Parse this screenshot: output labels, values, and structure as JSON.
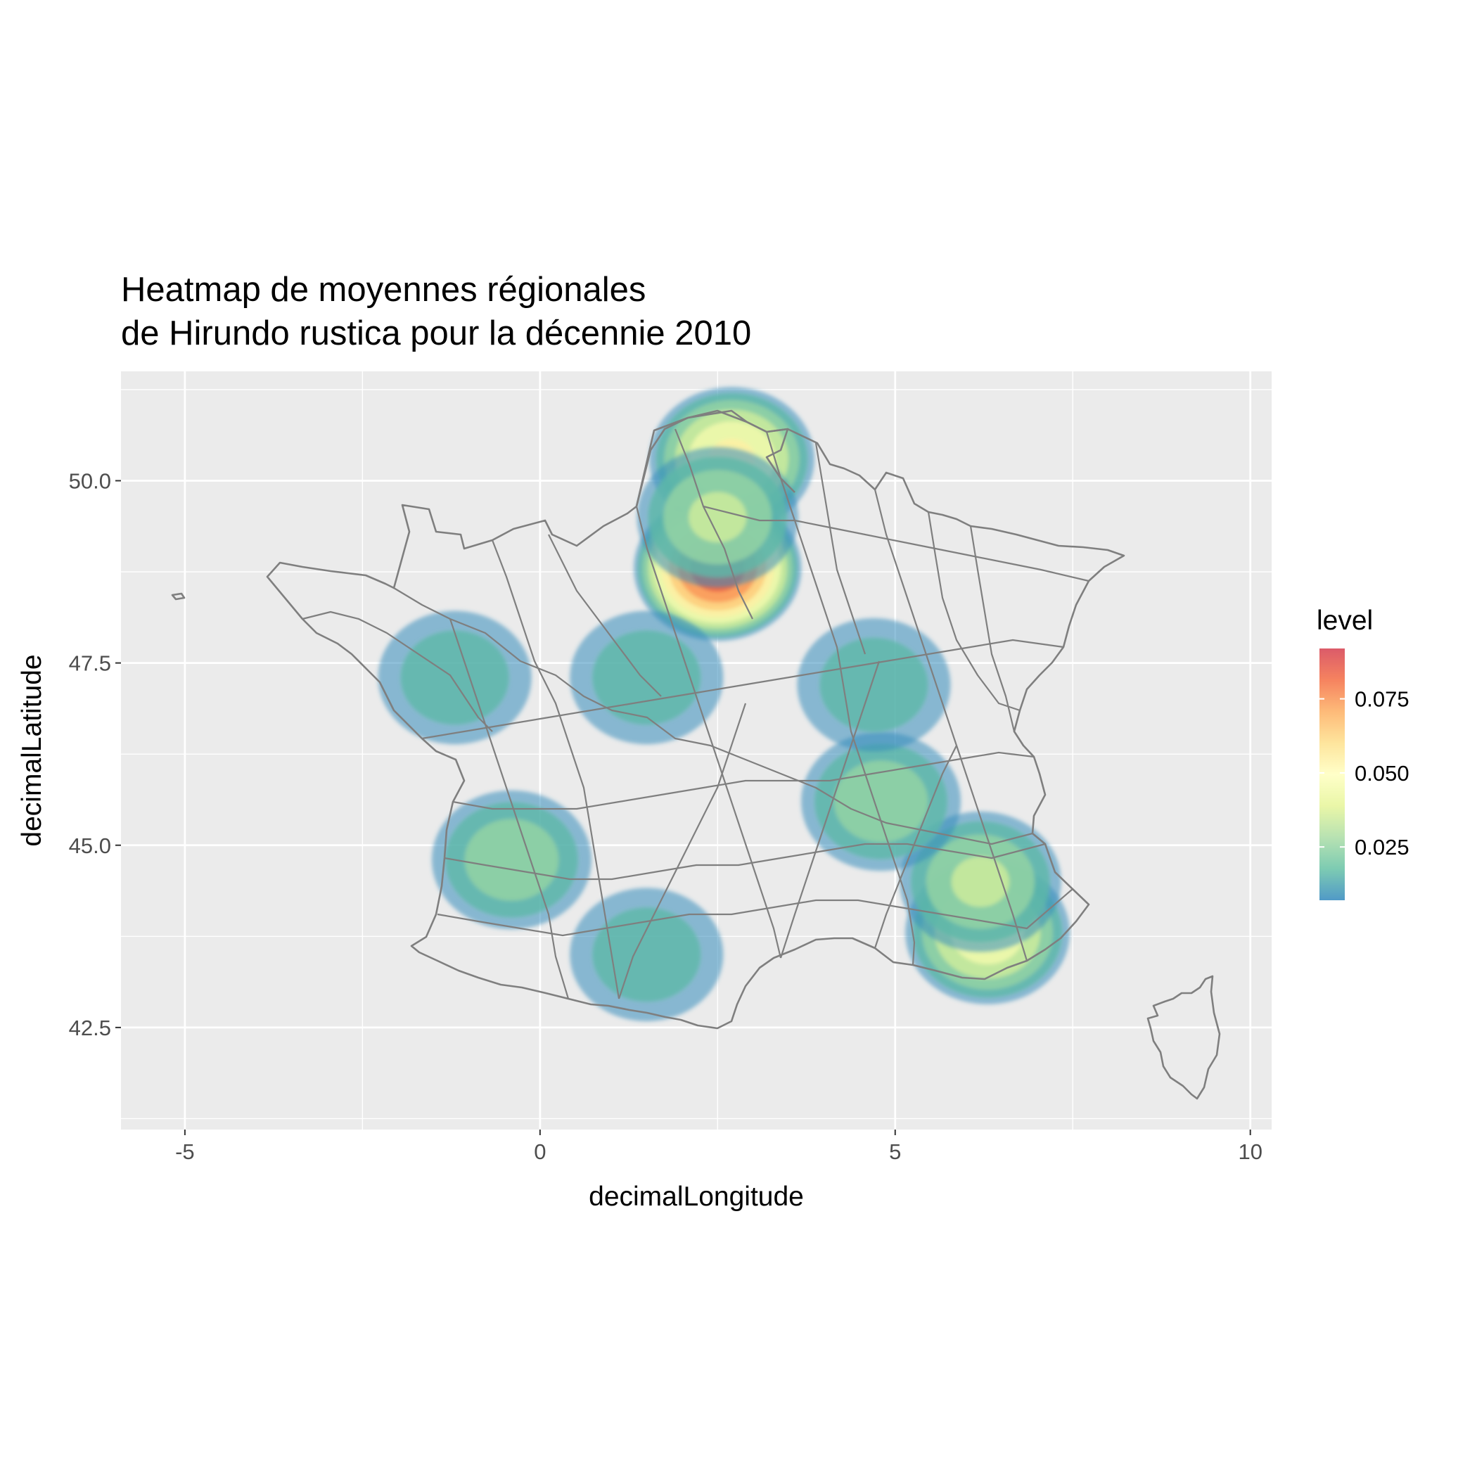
{
  "chart_data": {
    "type": "heatmap",
    "title_lines": [
      "Heatmap de moyennes régionales",
      "de Hirundo rustica pour la décennie 2010"
    ],
    "xlabel": "decimalLongitude",
    "ylabel": "decimalLatitude",
    "xlim": [
      -5.9,
      10.3
    ],
    "ylim": [
      41.1,
      51.5
    ],
    "x_ticks": [
      {
        "value": -5,
        "label": "-5"
      },
      {
        "value": 0,
        "label": "0"
      },
      {
        "value": 5,
        "label": "5"
      },
      {
        "value": 10,
        "label": "10"
      }
    ],
    "y_ticks": [
      {
        "value": 42.5,
        "label": "42.5"
      },
      {
        "value": 45,
        "label": "45.0"
      },
      {
        "value": 47.5,
        "label": "47.5"
      },
      {
        "value": 50,
        "label": "50.0"
      }
    ],
    "x_minor": [
      -2.5,
      2.5,
      7.5
    ],
    "y_minor": [
      41.25,
      43.75,
      46.25,
      48.75,
      51.25
    ],
    "grid": true,
    "panel_background": "#ebebeb",
    "legend": {
      "title": "level",
      "placement": "right",
      "range": [
        0.007,
        0.092
      ],
      "ticks": [
        {
          "value": 0.025,
          "label": "0.025"
        },
        {
          "value": 0.05,
          "label": "0.050"
        },
        {
          "value": 0.075,
          "label": "0.075"
        }
      ],
      "colors": [
        "#3288bd",
        "#66c2a5",
        "#abdda4",
        "#e6f598",
        "#ffffbf",
        "#fee08b",
        "#fdae61",
        "#f46d43",
        "#d53e4f"
      ]
    },
    "density_hotspots": [
      {
        "lon": 2.5,
        "lat": 48.8,
        "level": 0.09
      },
      {
        "lon": 2.7,
        "lat": 50.3,
        "level": 0.055
      },
      {
        "lon": 2.5,
        "lat": 49.5,
        "level": 0.035
      },
      {
        "lon": 6.3,
        "lat": 43.8,
        "level": 0.05
      },
      {
        "lon": 6.2,
        "lat": 44.5,
        "level": 0.035
      },
      {
        "lon": 4.8,
        "lat": 45.6,
        "level": 0.03
      },
      {
        "lon": -0.4,
        "lat": 44.8,
        "level": 0.03
      },
      {
        "lon": -1.2,
        "lat": 47.3,
        "level": 0.02
      },
      {
        "lon": 1.5,
        "lat": 47.3,
        "level": 0.02
      },
      {
        "lon": 4.7,
        "lat": 47.2,
        "level": 0.02
      },
      {
        "lon": 1.5,
        "lat": 43.5,
        "level": 0.02
      }
    ],
    "basemap": "france-departments-outline",
    "basemap_color": "#7f7f7f"
  }
}
